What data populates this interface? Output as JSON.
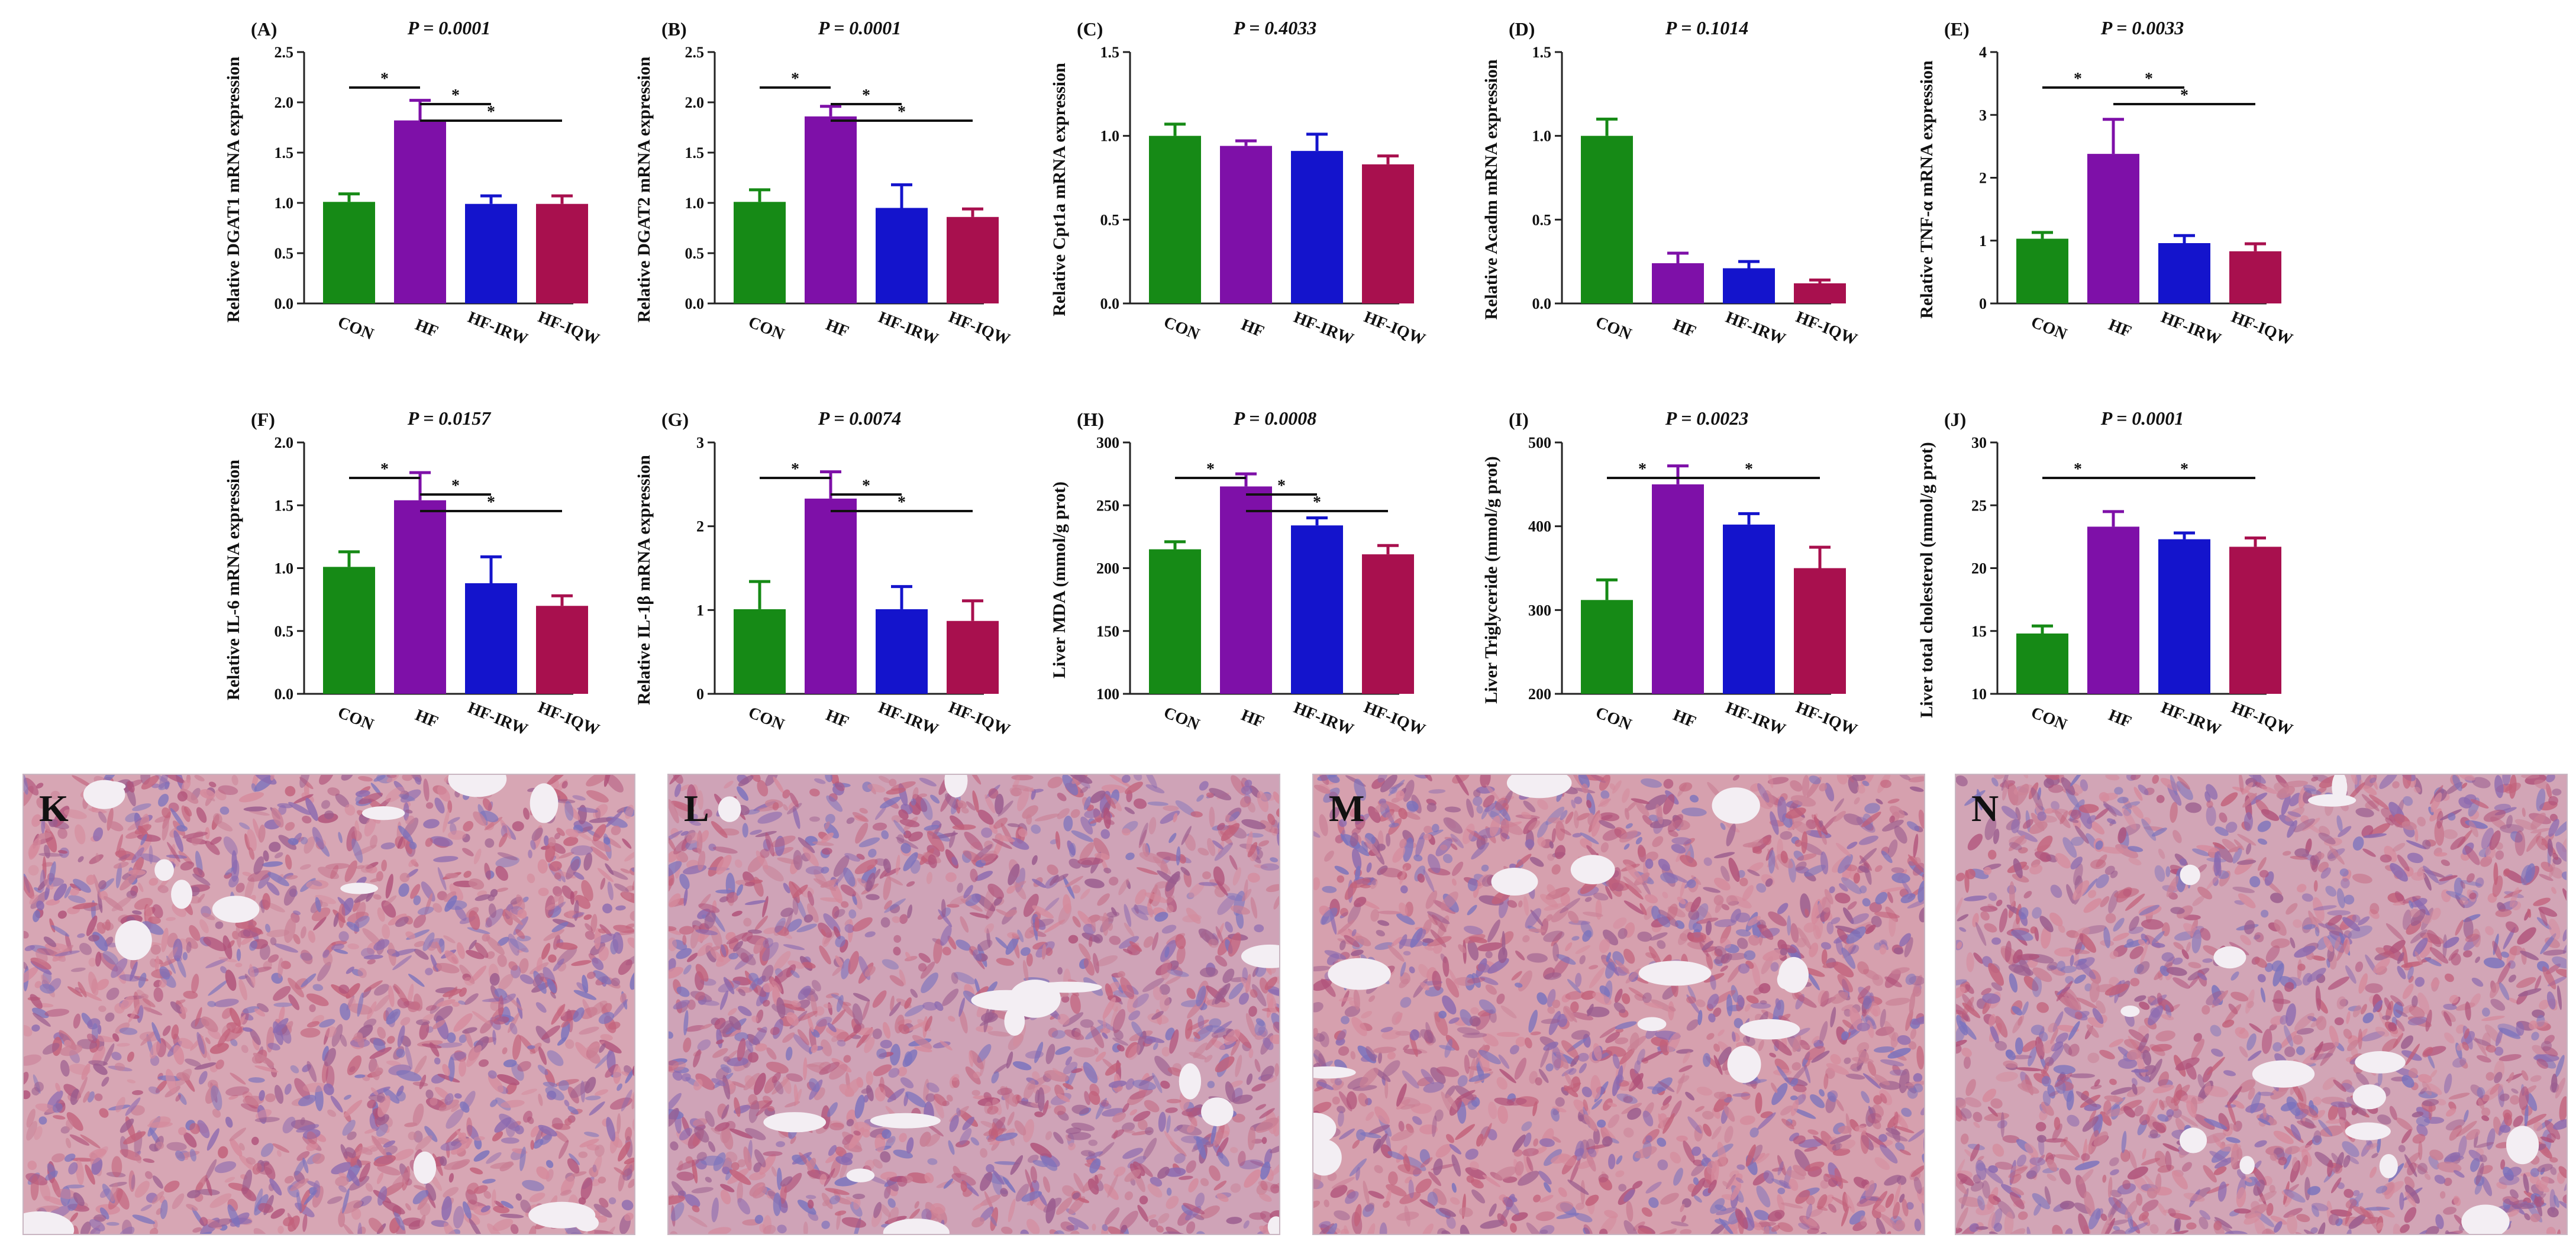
{
  "colors": {
    "CON": "#168a16",
    "HF": "#7e10a8",
    "HF-IRW": "#1414cc",
    "HF-IQW": "#a8104e"
  },
  "chart_data": [
    {
      "type": "bar",
      "label": "(A)",
      "p": "P = 0.0001",
      "ylabel": "Relative DGAT1 mRNA expression",
      "categories": [
        "CON",
        "HF",
        "HF-IRW",
        "HF-IQW"
      ],
      "values": [
        1.01,
        1.82,
        0.99,
        0.99
      ],
      "errors": [
        0.08,
        0.2,
        0.08,
        0.08
      ],
      "ylim": [
        0,
        2.5
      ],
      "yticks": [
        "0.0",
        "0.5",
        "1.0",
        "1.5",
        "2.0",
        "2.5"
      ],
      "sig": [
        {
          "from": 0,
          "to": 1,
          "level": 0,
          "star": "*"
        },
        {
          "from": 1,
          "to": 2,
          "level": 1,
          "star": "*"
        },
        {
          "from": 1,
          "to": 3,
          "level": 2,
          "star": "*"
        }
      ]
    },
    {
      "type": "bar",
      "label": "(B)",
      "p": "P = 0.0001",
      "ylabel": "Relative DGAT2 mRNA expression",
      "categories": [
        "CON",
        "HF",
        "HF-IRW",
        "HF-IQW"
      ],
      "values": [
        1.01,
        1.86,
        0.95,
        0.86
      ],
      "errors": [
        0.12,
        0.1,
        0.23,
        0.08
      ],
      "ylim": [
        0,
        2.5
      ],
      "yticks": [
        "0.0",
        "0.5",
        "1.0",
        "1.5",
        "2.0",
        "2.5"
      ],
      "sig": [
        {
          "from": 0,
          "to": 1,
          "level": 0,
          "star": "*"
        },
        {
          "from": 1,
          "to": 2,
          "level": 1,
          "star": "*"
        },
        {
          "from": 1,
          "to": 3,
          "level": 2,
          "star": "*"
        }
      ]
    },
    {
      "type": "bar",
      "label": "(C)",
      "p": "P = 0.4033",
      "ylabel": "Relative Cpt1a mRNA expression",
      "categories": [
        "CON",
        "HF",
        "HF-IRW",
        "HF-IQW"
      ],
      "values": [
        1.0,
        0.94,
        0.91,
        0.83
      ],
      "errors": [
        0.07,
        0.03,
        0.1,
        0.05
      ],
      "ylim": [
        0,
        1.5
      ],
      "yticks": [
        "0.0",
        "0.5",
        "1.0",
        "1.5"
      ],
      "sig": []
    },
    {
      "type": "bar",
      "label": "(D)",
      "p": "P = 0.1014",
      "ylabel": "Relative Acadm mRNA expression",
      "categories": [
        "CON",
        "HF",
        "HF-IRW",
        "HF-IQW"
      ],
      "values": [
        1.0,
        0.24,
        0.21,
        0.12
      ],
      "errors": [
        0.1,
        0.06,
        0.04,
        0.02
      ],
      "ylim": [
        0,
        1.5
      ],
      "yticks": [
        "0.0",
        "0.5",
        "1.0",
        "1.5"
      ],
      "sig": []
    },
    {
      "type": "bar",
      "label": "(E)",
      "p": "P = 0.0033",
      "ylabel": "Relative TNF-α mRNA expression",
      "categories": [
        "CON",
        "HF",
        "HF-IRW",
        "HF-IQW"
      ],
      "values": [
        1.03,
        2.38,
        0.96,
        0.83
      ],
      "errors": [
        0.1,
        0.55,
        0.12,
        0.12
      ],
      "ylim": [
        0,
        4
      ],
      "yticks": [
        "0",
        "1",
        "2",
        "3",
        "4"
      ],
      "sig": [
        {
          "from": 0,
          "to": 1,
          "level": 0,
          "star": "*"
        },
        {
          "from": 1,
          "to": 2,
          "level": 0,
          "star": "*"
        },
        {
          "from": 1,
          "to": 3,
          "level": 1,
          "star": "*"
        }
      ]
    },
    {
      "type": "bar",
      "label": "(F)",
      "p": "P = 0.0157",
      "ylabel": "Relative IL-6 mRNA expression",
      "categories": [
        "CON",
        "HF",
        "HF-IRW",
        "HF-IQW"
      ],
      "values": [
        1.01,
        1.54,
        0.88,
        0.7
      ],
      "errors": [
        0.12,
        0.22,
        0.21,
        0.08
      ],
      "ylim": [
        0,
        2.0
      ],
      "yticks": [
        "0.0",
        "0.5",
        "1.0",
        "1.5",
        "2.0"
      ],
      "sig": [
        {
          "from": 0,
          "to": 1,
          "level": 0,
          "star": "*"
        },
        {
          "from": 1,
          "to": 2,
          "level": 1,
          "star": "*"
        },
        {
          "from": 1,
          "to": 3,
          "level": 2,
          "star": "*"
        }
      ]
    },
    {
      "type": "bar",
      "label": "(G)",
      "p": "P = 0.0074",
      "ylabel": "Relative IL-1β mRNA expression",
      "categories": [
        "CON",
        "HF",
        "HF-IRW",
        "HF-IQW"
      ],
      "values": [
        1.01,
        2.33,
        1.01,
        0.87
      ],
      "errors": [
        0.33,
        0.32,
        0.27,
        0.24
      ],
      "ylim": [
        0,
        3
      ],
      "yticks": [
        "0",
        "1",
        "2",
        "3"
      ],
      "sig": [
        {
          "from": 0,
          "to": 1,
          "level": 0,
          "star": "*"
        },
        {
          "from": 1,
          "to": 2,
          "level": 1,
          "star": "*"
        },
        {
          "from": 1,
          "to": 3,
          "level": 2,
          "star": "*"
        }
      ]
    },
    {
      "type": "bar",
      "label": "(H)",
      "p": "P = 0.0008",
      "ylabel": "Liver MDA (mmol/g prot)",
      "categories": [
        "CON",
        "HF",
        "HF-IRW",
        "HF-IQW"
      ],
      "values": [
        215,
        265,
        234,
        211
      ],
      "errors": [
        6,
        10,
        6,
        7
      ],
      "ylim": [
        100,
        300
      ],
      "yticks": [
        "100",
        "150",
        "200",
        "250",
        "300"
      ],
      "sig": [
        {
          "from": 0,
          "to": 1,
          "level": 0,
          "star": "*"
        },
        {
          "from": 1,
          "to": 2,
          "level": 1,
          "star": "*"
        },
        {
          "from": 1,
          "to": 3,
          "level": 2,
          "star": "*"
        }
      ]
    },
    {
      "type": "bar",
      "label": "(I)",
      "p": "P = 0.0023",
      "ylabel": "Liver Triglyceride (mmol/g prot)",
      "categories": [
        "CON",
        "HF",
        "HF-IRW",
        "HF-IQW"
      ],
      "values": [
        312,
        450,
        402,
        350
      ],
      "errors": [
        24,
        22,
        13,
        25
      ],
      "ylim": [
        200,
        500
      ],
      "yticks": [
        "200",
        "300",
        "400",
        "500"
      ],
      "sig": [
        {
          "from": 0,
          "to": 1,
          "level": 0,
          "star": "*"
        },
        {
          "from": 1,
          "to": 3,
          "level": 0,
          "star": "*"
        }
      ]
    },
    {
      "type": "bar",
      "label": "(J)",
      "p": "P = 0.0001",
      "ylabel": "Liver total cholesterol  (mmol/g prot)",
      "categories": [
        "CON",
        "HF",
        "HF-IRW",
        "HF-IQW"
      ],
      "values": [
        14.8,
        23.3,
        22.3,
        21.7
      ],
      "errors": [
        0.6,
        1.2,
        0.5,
        0.7
      ],
      "ylim": [
        10,
        30
      ],
      "yticks": [
        "10",
        "15",
        "20",
        "25",
        "30"
      ],
      "sig": [
        {
          "from": 0,
          "to": 1,
          "level": 0,
          "star": "*"
        },
        {
          "from": 1,
          "to": 3,
          "level": 0,
          "star": "*"
        }
      ]
    }
  ],
  "micrographs": [
    {
      "label": "K",
      "tone": "#d7a6b4"
    },
    {
      "label": "L",
      "tone": "#cfa3b7"
    },
    {
      "label": "M",
      "tone": "#d6a0ae"
    },
    {
      "label": "N",
      "tone": "#d2a5b6"
    }
  ]
}
